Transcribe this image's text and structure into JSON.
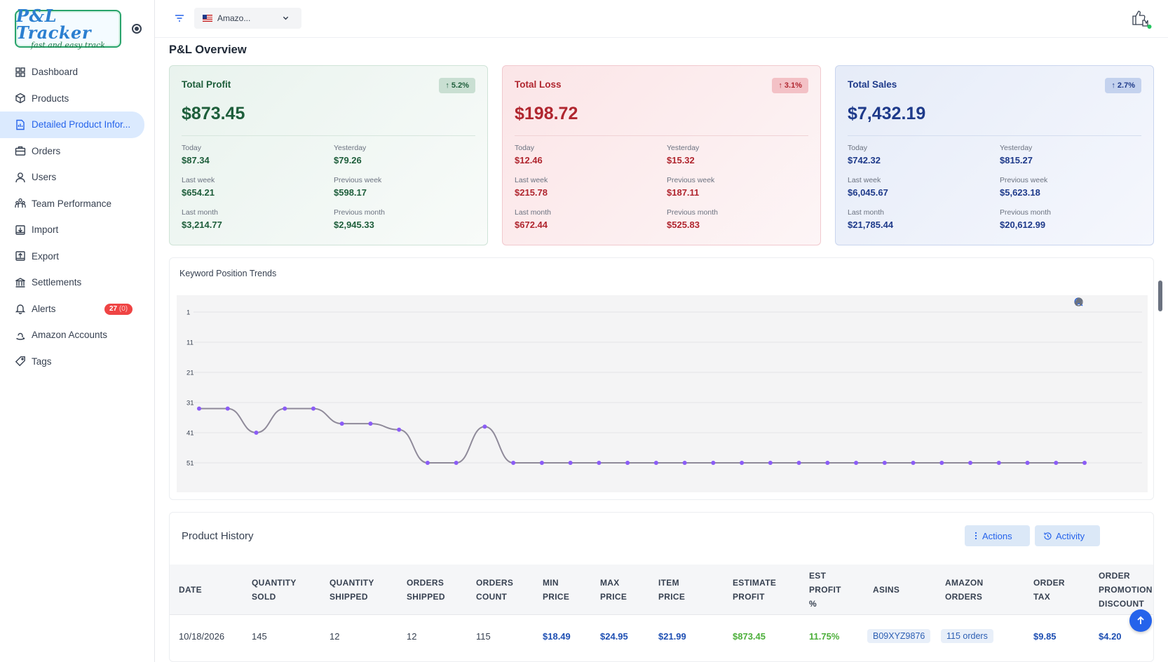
{
  "app": {
    "logo_title": "P&L Tracker",
    "logo_tagline": "fast and easy track"
  },
  "sidebar": {
    "items": [
      {
        "label": "Dashboard",
        "icon": "dashboard-icon"
      },
      {
        "label": "Products",
        "icon": "box-icon"
      },
      {
        "label": "Detailed Product Infor...",
        "icon": "document-icon",
        "active": true
      },
      {
        "label": "Orders",
        "icon": "briefcase-icon"
      },
      {
        "label": "Users",
        "icon": "user-icon"
      },
      {
        "label": "Team Performance",
        "icon": "team-icon"
      },
      {
        "label": "Import",
        "icon": "import-icon"
      },
      {
        "label": "Export",
        "icon": "export-icon"
      },
      {
        "label": "Settlements",
        "icon": "bank-icon"
      },
      {
        "label": "Alerts",
        "icon": "bell-icon",
        "badge": "27",
        "badge_sub": "(0)"
      },
      {
        "label": "Amazon Accounts",
        "icon": "amazon-icon"
      },
      {
        "label": "Tags",
        "icon": "tag-icon"
      }
    ]
  },
  "topbar": {
    "marketplace": "Amazo..."
  },
  "overview": {
    "title": "P&L Overview",
    "cards": [
      {
        "title": "Total Profit",
        "badge": "↑ 5.2%",
        "total": "$873.45",
        "today_label": "Today",
        "today": "$87.34",
        "yesterday_label": "Yesterday",
        "yesterday": "$79.26",
        "last_week_label": "Last week",
        "last_week": "$654.21",
        "prev_week_label": "Previous week",
        "prev_week": "$598.17",
        "last_month_label": "Last month",
        "last_month": "$3,214.77",
        "prev_month_label": "Previous month",
        "prev_month": "$2,945.33"
      },
      {
        "title": "Total Loss",
        "badge": "↑ 3.1%",
        "total": "$198.72",
        "today_label": "Today",
        "today": "$12.46",
        "yesterday_label": "Yesterday",
        "yesterday": "$15.32",
        "last_week_label": "Last week",
        "last_week": "$215.78",
        "prev_week_label": "Previous week",
        "prev_week": "$187.11",
        "last_month_label": "Last month",
        "last_month": "$672.44",
        "prev_month_label": "Previous month",
        "prev_month": "$525.83"
      },
      {
        "title": "Total Sales",
        "badge": "↑ 2.7%",
        "total": "$7,432.19",
        "today_label": "Today",
        "today": "$742.32",
        "yesterday_label": "Yesterday",
        "yesterday": "$815.27",
        "last_week_label": "Last week",
        "last_week": "$6,045.67",
        "prev_week_label": "Previous week",
        "prev_week": "$5,623.18",
        "last_month_label": "Last month",
        "last_month": "$21,785.44",
        "prev_month_label": "Previous month",
        "prev_month": "$20,612.99"
      }
    ]
  },
  "chart_data": {
    "type": "line",
    "title": "Keyword Position Trends",
    "xlabel": "",
    "ylabel": "",
    "y_ticks": [
      1,
      11,
      21,
      31,
      41,
      51
    ],
    "ylim": [
      1,
      51
    ],
    "y_inverted": true,
    "grid": true,
    "series": [
      {
        "color": "#8b5cf6",
        "line_color": "#8f8a9a",
        "values": [
          33,
          33,
          41,
          33,
          33,
          38,
          38,
          40,
          51,
          51,
          39,
          51,
          51,
          51,
          51,
          51,
          51,
          51,
          51,
          51,
          51,
          51,
          51,
          51,
          51,
          51,
          51,
          51,
          51,
          51,
          51,
          51
        ]
      }
    ]
  },
  "history": {
    "title": "Product History",
    "actions_label": "Actions",
    "activity_label": "Activity",
    "headers": [
      "DATE",
      "QUANTITY SOLD",
      "QUANTITY SHIPPED",
      "ORDERS SHIPPED",
      "ORDERS COUNT",
      "MIN PRICE",
      "MAX PRICE",
      "ITEM PRICE",
      "ESTIMATE PROFIT",
      "EST PROFIT %",
      "ASINS",
      "AMAZON ORDERS",
      "ORDER TAX",
      "ORDER PROMOTION DISCOUNT"
    ],
    "rows": [
      [
        "10/18/2026",
        "145",
        "12",
        "12",
        "115",
        "$18.49",
        "$24.95",
        "$21.99",
        "$873.45",
        "11.75%",
        "B09XYZ9876",
        "115 orders",
        "$9.85",
        "$4.20"
      ]
    ]
  }
}
